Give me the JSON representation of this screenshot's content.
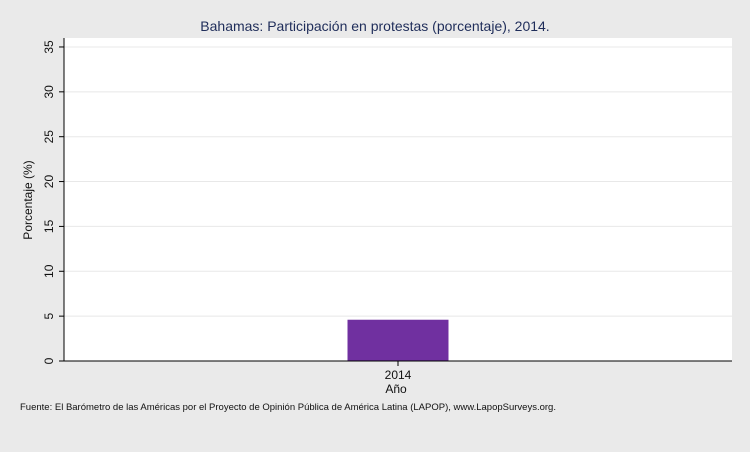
{
  "chart_data": {
    "type": "bar",
    "title": "Bahamas: Participación en protestas (porcentaje), 2014.",
    "xlabel": "Año",
    "ylabel": "Porcentaje (%)",
    "categories": [
      "2014"
    ],
    "values": [
      4.6
    ],
    "ylim": [
      0,
      36
    ],
    "yticks": [
      0,
      5,
      10,
      15,
      20,
      25,
      30,
      35
    ],
    "grid": true,
    "bar_color": "#7030a0",
    "source": "Fuente: El Barómetro de las Américas por el Proyecto de Opinión Pública de América Latina (LAPOP), www.LapopSurveys.org."
  }
}
